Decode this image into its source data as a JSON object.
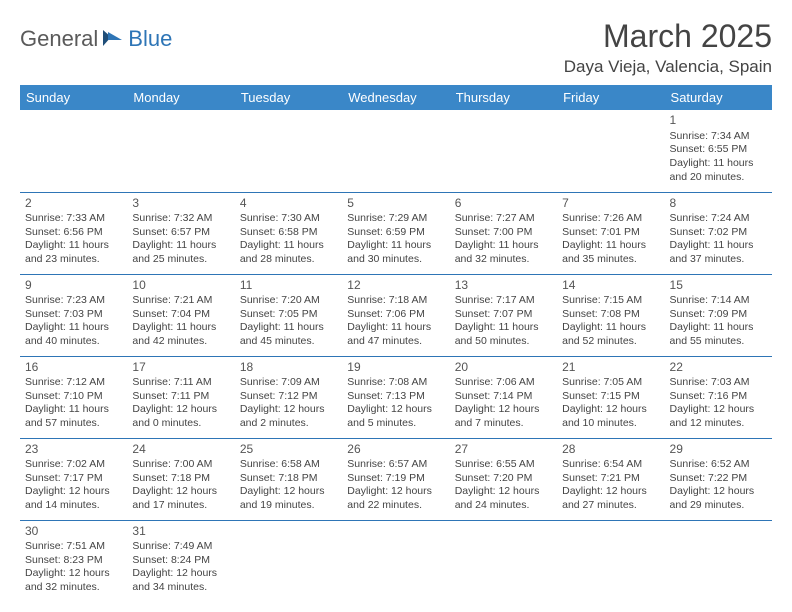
{
  "logo": {
    "part1": "General",
    "part2": "Blue"
  },
  "title": "March 2025",
  "location": "Daya Vieja, Valencia, Spain",
  "colors": {
    "header_bg": "#3a87c8",
    "header_fg": "#ffffff",
    "border": "#2e75b6",
    "logo_gray": "#5a5a5a",
    "logo_blue": "#2e75b6"
  },
  "weekdays": [
    "Sunday",
    "Monday",
    "Tuesday",
    "Wednesday",
    "Thursday",
    "Friday",
    "Saturday"
  ],
  "weeks": [
    [
      null,
      null,
      null,
      null,
      null,
      null,
      {
        "n": "1",
        "sr": "Sunrise: 7:34 AM",
        "ss": "Sunset: 6:55 PM",
        "dl": "Daylight: 11 hours and 20 minutes."
      }
    ],
    [
      {
        "n": "2",
        "sr": "Sunrise: 7:33 AM",
        "ss": "Sunset: 6:56 PM",
        "dl": "Daylight: 11 hours and 23 minutes."
      },
      {
        "n": "3",
        "sr": "Sunrise: 7:32 AM",
        "ss": "Sunset: 6:57 PM",
        "dl": "Daylight: 11 hours and 25 minutes."
      },
      {
        "n": "4",
        "sr": "Sunrise: 7:30 AM",
        "ss": "Sunset: 6:58 PM",
        "dl": "Daylight: 11 hours and 28 minutes."
      },
      {
        "n": "5",
        "sr": "Sunrise: 7:29 AM",
        "ss": "Sunset: 6:59 PM",
        "dl": "Daylight: 11 hours and 30 minutes."
      },
      {
        "n": "6",
        "sr": "Sunrise: 7:27 AM",
        "ss": "Sunset: 7:00 PM",
        "dl": "Daylight: 11 hours and 32 minutes."
      },
      {
        "n": "7",
        "sr": "Sunrise: 7:26 AM",
        "ss": "Sunset: 7:01 PM",
        "dl": "Daylight: 11 hours and 35 minutes."
      },
      {
        "n": "8",
        "sr": "Sunrise: 7:24 AM",
        "ss": "Sunset: 7:02 PM",
        "dl": "Daylight: 11 hours and 37 minutes."
      }
    ],
    [
      {
        "n": "9",
        "sr": "Sunrise: 7:23 AM",
        "ss": "Sunset: 7:03 PM",
        "dl": "Daylight: 11 hours and 40 minutes."
      },
      {
        "n": "10",
        "sr": "Sunrise: 7:21 AM",
        "ss": "Sunset: 7:04 PM",
        "dl": "Daylight: 11 hours and 42 minutes."
      },
      {
        "n": "11",
        "sr": "Sunrise: 7:20 AM",
        "ss": "Sunset: 7:05 PM",
        "dl": "Daylight: 11 hours and 45 minutes."
      },
      {
        "n": "12",
        "sr": "Sunrise: 7:18 AM",
        "ss": "Sunset: 7:06 PM",
        "dl": "Daylight: 11 hours and 47 minutes."
      },
      {
        "n": "13",
        "sr": "Sunrise: 7:17 AM",
        "ss": "Sunset: 7:07 PM",
        "dl": "Daylight: 11 hours and 50 minutes."
      },
      {
        "n": "14",
        "sr": "Sunrise: 7:15 AM",
        "ss": "Sunset: 7:08 PM",
        "dl": "Daylight: 11 hours and 52 minutes."
      },
      {
        "n": "15",
        "sr": "Sunrise: 7:14 AM",
        "ss": "Sunset: 7:09 PM",
        "dl": "Daylight: 11 hours and 55 minutes."
      }
    ],
    [
      {
        "n": "16",
        "sr": "Sunrise: 7:12 AM",
        "ss": "Sunset: 7:10 PM",
        "dl": "Daylight: 11 hours and 57 minutes."
      },
      {
        "n": "17",
        "sr": "Sunrise: 7:11 AM",
        "ss": "Sunset: 7:11 PM",
        "dl": "Daylight: 12 hours and 0 minutes."
      },
      {
        "n": "18",
        "sr": "Sunrise: 7:09 AM",
        "ss": "Sunset: 7:12 PM",
        "dl": "Daylight: 12 hours and 2 minutes."
      },
      {
        "n": "19",
        "sr": "Sunrise: 7:08 AM",
        "ss": "Sunset: 7:13 PM",
        "dl": "Daylight: 12 hours and 5 minutes."
      },
      {
        "n": "20",
        "sr": "Sunrise: 7:06 AM",
        "ss": "Sunset: 7:14 PM",
        "dl": "Daylight: 12 hours and 7 minutes."
      },
      {
        "n": "21",
        "sr": "Sunrise: 7:05 AM",
        "ss": "Sunset: 7:15 PM",
        "dl": "Daylight: 12 hours and 10 minutes."
      },
      {
        "n": "22",
        "sr": "Sunrise: 7:03 AM",
        "ss": "Sunset: 7:16 PM",
        "dl": "Daylight: 12 hours and 12 minutes."
      }
    ],
    [
      {
        "n": "23",
        "sr": "Sunrise: 7:02 AM",
        "ss": "Sunset: 7:17 PM",
        "dl": "Daylight: 12 hours and 14 minutes."
      },
      {
        "n": "24",
        "sr": "Sunrise: 7:00 AM",
        "ss": "Sunset: 7:18 PM",
        "dl": "Daylight: 12 hours and 17 minutes."
      },
      {
        "n": "25",
        "sr": "Sunrise: 6:58 AM",
        "ss": "Sunset: 7:18 PM",
        "dl": "Daylight: 12 hours and 19 minutes."
      },
      {
        "n": "26",
        "sr": "Sunrise: 6:57 AM",
        "ss": "Sunset: 7:19 PM",
        "dl": "Daylight: 12 hours and 22 minutes."
      },
      {
        "n": "27",
        "sr": "Sunrise: 6:55 AM",
        "ss": "Sunset: 7:20 PM",
        "dl": "Daylight: 12 hours and 24 minutes."
      },
      {
        "n": "28",
        "sr": "Sunrise: 6:54 AM",
        "ss": "Sunset: 7:21 PM",
        "dl": "Daylight: 12 hours and 27 minutes."
      },
      {
        "n": "29",
        "sr": "Sunrise: 6:52 AM",
        "ss": "Sunset: 7:22 PM",
        "dl": "Daylight: 12 hours and 29 minutes."
      }
    ],
    [
      {
        "n": "30",
        "sr": "Sunrise: 7:51 AM",
        "ss": "Sunset: 8:23 PM",
        "dl": "Daylight: 12 hours and 32 minutes."
      },
      {
        "n": "31",
        "sr": "Sunrise: 7:49 AM",
        "ss": "Sunset: 8:24 PM",
        "dl": "Daylight: 12 hours and 34 minutes."
      },
      null,
      null,
      null,
      null,
      null
    ]
  ]
}
